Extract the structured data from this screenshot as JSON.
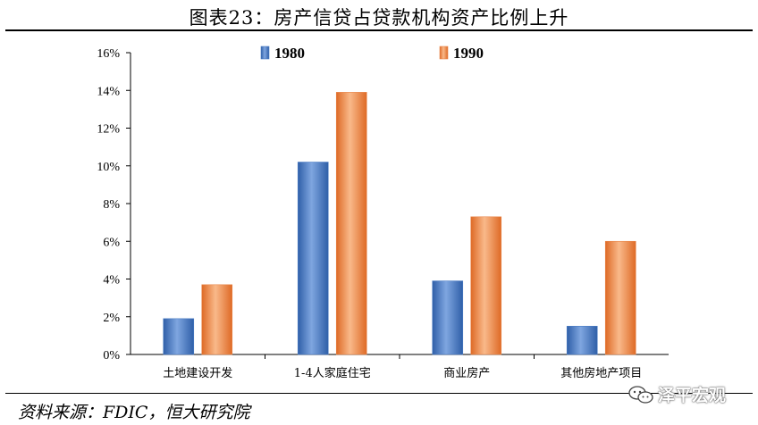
{
  "header": {
    "title": "图表23：房产信贷占贷款机构资产比例上升"
  },
  "footer": {
    "source": "资料来源：FDIC，恒大研究院",
    "watermark": "泽平宏观"
  },
  "colors": {
    "series_1980": "#4a7cc4",
    "series_1990": "#e8864a"
  },
  "chart_data": {
    "type": "bar",
    "title": "",
    "xlabel": "",
    "ylabel": "",
    "categories": [
      "土地建设开发",
      "1-4人家庭住宅",
      "商业房产",
      "其他房地产项目"
    ],
    "series": [
      {
        "name": "1980",
        "values": [
          1.9,
          10.2,
          3.9,
          1.5
        ]
      },
      {
        "name": "1990",
        "values": [
          3.7,
          13.9,
          7.3,
          6.0
        ]
      }
    ],
    "ylim": [
      0,
      16
    ],
    "yticks": [
      "0%",
      "2%",
      "4%",
      "6%",
      "8%",
      "10%",
      "12%",
      "14%",
      "16%"
    ],
    "grid": false,
    "legend": "top-center"
  }
}
